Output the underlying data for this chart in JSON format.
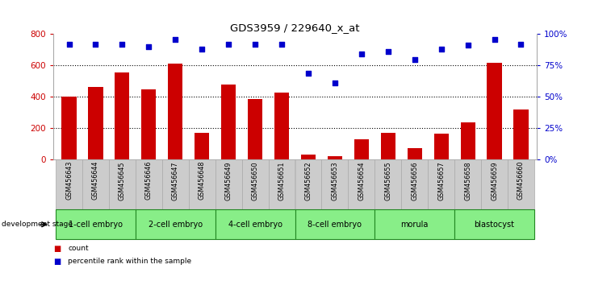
{
  "title": "GDS3959 / 229640_x_at",
  "samples": [
    "GSM456643",
    "GSM456644",
    "GSM456645",
    "GSM456646",
    "GSM456647",
    "GSM456648",
    "GSM456649",
    "GSM456650",
    "GSM456651",
    "GSM456652",
    "GSM456653",
    "GSM456654",
    "GSM456655",
    "GSM456656",
    "GSM456657",
    "GSM456658",
    "GSM456659",
    "GSM456660"
  ],
  "counts": [
    400,
    465,
    555,
    450,
    610,
    170,
    480,
    385,
    425,
    30,
    20,
    130,
    170,
    75,
    165,
    240,
    615,
    320
  ],
  "percentile_ranks": [
    92,
    92,
    92,
    90,
    96,
    88,
    92,
    92,
    92,
    69,
    61,
    84,
    86,
    80,
    88,
    91,
    96,
    92
  ],
  "stages": [
    {
      "label": "1-cell embryo",
      "start": 0,
      "end": 3
    },
    {
      "label": "2-cell embryo",
      "start": 3,
      "end": 6
    },
    {
      "label": "4-cell embryo",
      "start": 6,
      "end": 9
    },
    {
      "label": "8-cell embryo",
      "start": 9,
      "end": 12
    },
    {
      "label": "morula",
      "start": 12,
      "end": 15
    },
    {
      "label": "blastocyst",
      "start": 15,
      "end": 18
    }
  ],
  "bar_color": "#cc0000",
  "dot_color": "#0000cc",
  "bar_ylim": [
    0,
    800
  ],
  "bar_yticks": [
    0,
    200,
    400,
    600,
    800
  ],
  "percentile_ylim": [
    0,
    100
  ],
  "percentile_yticks": [
    0,
    25,
    50,
    75,
    100
  ],
  "percentile_yticklabels": [
    "0%",
    "25%",
    "50%",
    "75%",
    "100%"
  ],
  "grid_dotted_at": [
    200,
    400,
    600
  ],
  "stage_bg_color": "#88ee88",
  "stage_border_color": "#228822",
  "tick_label_bg": "#cccccc",
  "tick_label_border": "#aaaaaa",
  "bg_color": "#ffffff"
}
